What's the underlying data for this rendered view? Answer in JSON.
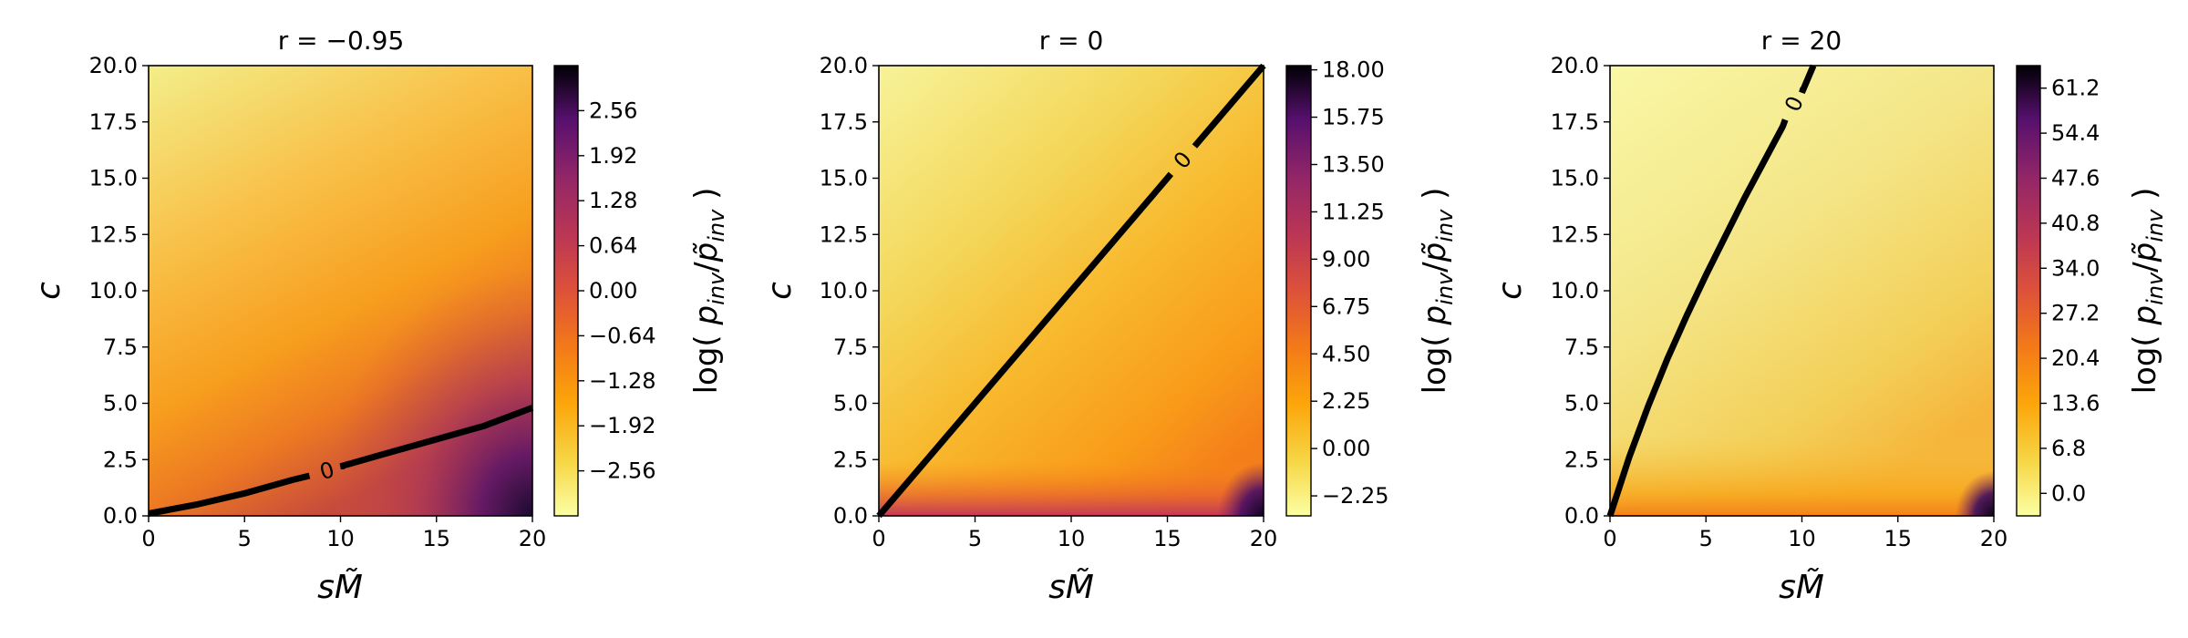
{
  "chart_data": [
    {
      "type": "heatmap",
      "title": "r = −0.95",
      "xlabel": "sM̃",
      "ylabel": "c",
      "xlim": [
        0,
        20
      ],
      "ylim": [
        0,
        20
      ],
      "x_ticks": [
        "0",
        "5",
        "10",
        "15",
        "20"
      ],
      "y_ticks": [
        "0.0",
        "2.5",
        "5.0",
        "7.5",
        "10.0",
        "12.5",
        "15.0",
        "17.5",
        "20.0"
      ],
      "colorbar": {
        "label": "log( p_inv/p̃_inv )",
        "range": [
          -3.2,
          3.2
        ],
        "ticks": [
          "−2.56",
          "−1.92",
          "−1.28",
          "−0.64",
          "0.00",
          "0.64",
          "1.28",
          "1.92",
          "2.56"
        ],
        "tick_values": [
          -2.56,
          -1.92,
          -1.28,
          -0.64,
          0.0,
          0.64,
          1.28,
          1.92,
          2.56
        ]
      },
      "colormap": "inferno_r",
      "contour": {
        "level_label": "0",
        "points": [
          [
            0,
            0.1
          ],
          [
            2.5,
            0.5
          ],
          [
            5,
            1.0
          ],
          [
            7.5,
            1.6
          ],
          [
            10,
            2.2
          ],
          [
            12.5,
            2.8
          ],
          [
            15,
            3.4
          ],
          [
            17.5,
            4.0
          ],
          [
            20,
            4.8
          ]
        ],
        "label_at": [
          9.3,
          2.0
        ]
      }
    },
    {
      "type": "heatmap",
      "title": "r = 0",
      "xlabel": "sM̃",
      "ylabel": "c",
      "xlim": [
        0,
        20
      ],
      "ylim": [
        0,
        20
      ],
      "x_ticks": [
        "0",
        "5",
        "10",
        "15",
        "20"
      ],
      "y_ticks": [
        "0.0",
        "2.5",
        "5.0",
        "7.5",
        "10.0",
        "12.5",
        "15.0",
        "17.5",
        "20.0"
      ],
      "colorbar": {
        "label": "log( p_inv/p̃_inv )",
        "range": [
          -3.2,
          18.2
        ],
        "ticks": [
          "−2.25",
          "0.00",
          "2.25",
          "4.50",
          "6.75",
          "9.00",
          "11.25",
          "13.50",
          "15.75",
          "18.00"
        ],
        "tick_values": [
          -2.25,
          0.0,
          2.25,
          4.5,
          6.75,
          9.0,
          11.25,
          13.5,
          15.75,
          18.0
        ]
      },
      "colormap": "inferno_r",
      "contour": {
        "level_label": "0",
        "points": [
          [
            0,
            0
          ],
          [
            20,
            20
          ]
        ],
        "label_at": [
          15.8,
          15.8
        ]
      }
    },
    {
      "type": "heatmap",
      "title": "r = 20",
      "xlabel": "sM̃",
      "ylabel": "c",
      "xlim": [
        0,
        20
      ],
      "ylim": [
        0,
        20
      ],
      "x_ticks": [
        "0",
        "5",
        "10",
        "15",
        "20"
      ],
      "y_ticks": [
        "0.0",
        "2.5",
        "5.0",
        "7.5",
        "10.0",
        "12.5",
        "15.0",
        "17.5",
        "20.0"
      ],
      "colorbar": {
        "label": "log( p_inv/p̃_inv )",
        "range": [
          -3.4,
          64.6
        ],
        "ticks": [
          "0.0",
          "6.8",
          "13.6",
          "20.4",
          "27.2",
          "34.0",
          "40.8",
          "47.6",
          "54.4",
          "61.2"
        ],
        "tick_values": [
          0.0,
          6.8,
          13.6,
          20.4,
          27.2,
          34.0,
          40.8,
          47.6,
          54.4,
          61.2
        ]
      },
      "colormap": "inferno_r",
      "contour": {
        "level_label": "0",
        "points": [
          [
            0,
            0
          ],
          [
            1,
            2.6
          ],
          [
            2,
            4.9
          ],
          [
            3,
            7.0
          ],
          [
            4,
            8.9
          ],
          [
            5,
            10.7
          ],
          [
            6,
            12.4
          ],
          [
            7,
            14.1
          ],
          [
            8,
            15.7
          ],
          [
            9,
            17.3
          ],
          [
            10,
            18.8
          ],
          [
            10.6,
            20
          ]
        ],
        "label_at": [
          9.6,
          18.3
        ]
      }
    }
  ]
}
